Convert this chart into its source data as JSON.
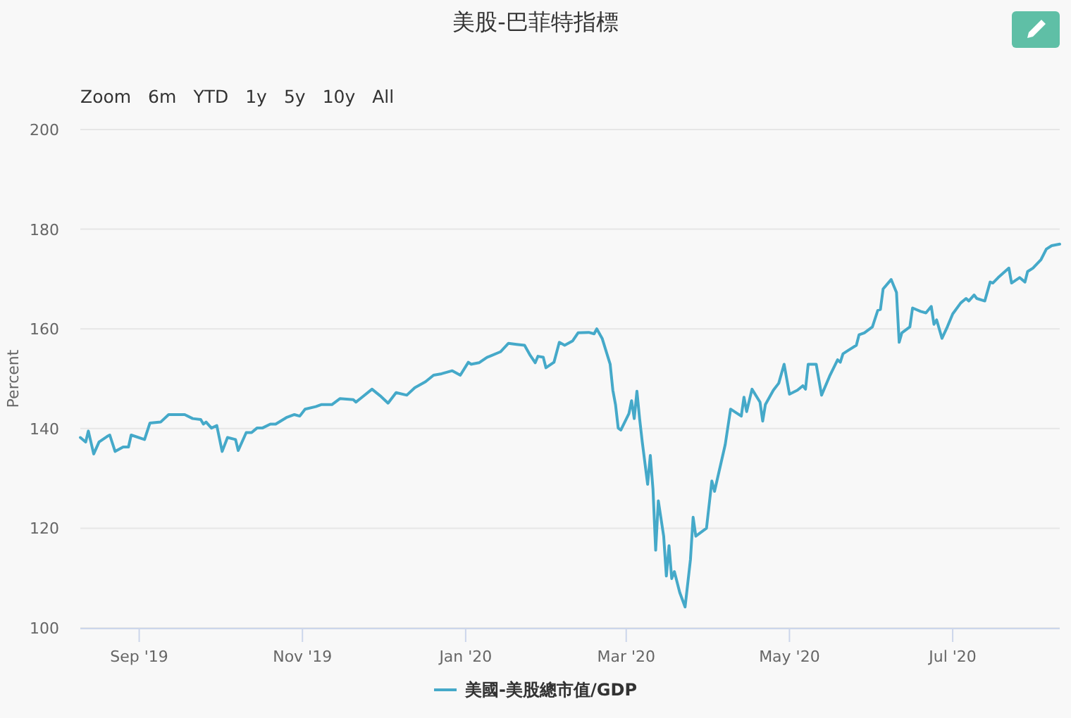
{
  "chart_data": {
    "type": "line",
    "title": "美股-巴菲特指標",
    "ylabel": "Percent",
    "annotations": [
      "Zoom",
      "6m",
      "YTD",
      "1y",
      "5y",
      "10y",
      "All"
    ],
    "x": [
      "2019-08-10",
      "2019-08-12",
      "2019-08-13",
      "2019-08-15",
      "2019-08-17",
      "2019-08-20",
      "2019-08-21",
      "2019-08-23",
      "2019-08-26",
      "2019-08-28",
      "2019-08-29",
      "2019-09-03",
      "2019-09-05",
      "2019-09-09",
      "2019-09-12",
      "2019-09-18",
      "2019-09-21",
      "2019-09-24",
      "2019-09-25",
      "2019-09-26",
      "2019-09-28",
      "2019-09-30",
      "2019-10-02",
      "2019-10-04",
      "2019-10-07",
      "2019-10-08",
      "2019-10-11",
      "2019-10-13",
      "2019-10-15",
      "2019-10-17",
      "2019-10-20",
      "2019-10-22",
      "2019-10-26",
      "2019-10-29",
      "2019-10-31",
      "2019-11-02",
      "2019-11-06",
      "2019-11-08",
      "2019-11-12",
      "2019-11-15",
      "2019-11-20",
      "2019-11-21",
      "2019-11-27",
      "2019-11-30",
      "2019-12-03",
      "2019-12-06",
      "2019-12-10",
      "2019-12-13",
      "2019-12-17",
      "2019-12-20",
      "2019-12-23",
      "2019-12-27",
      "2019-12-30",
      "2020-01-02",
      "2020-01-03",
      "2020-01-06",
      "2020-01-09",
      "2020-01-10",
      "2020-01-14",
      "2020-01-17",
      "2020-01-20",
      "2020-01-23",
      "2020-01-25",
      "2020-01-27",
      "2020-01-28",
      "2020-01-30",
      "2020-01-31",
      "2020-02-03",
      "2020-02-05",
      "2020-02-07",
      "2020-02-10",
      "2020-02-12",
      "2020-02-16",
      "2020-02-18",
      "2020-02-19",
      "2020-02-21",
      "2020-02-24",
      "2020-02-25",
      "2020-02-26",
      "2020-02-27",
      "2020-02-28",
      "2020-03-02",
      "2020-03-03",
      "2020-03-04",
      "2020-03-05",
      "2020-03-06",
      "2020-03-07",
      "2020-03-09",
      "2020-03-10",
      "2020-03-11",
      "2020-03-12",
      "2020-03-13",
      "2020-03-15",
      "2020-03-16",
      "2020-03-17",
      "2020-03-18",
      "2020-03-19",
      "2020-03-21",
      "2020-03-23",
      "2020-03-25",
      "2020-03-26",
      "2020-03-27",
      "2020-03-31",
      "2020-04-02",
      "2020-04-03",
      "2020-04-07",
      "2020-04-09",
      "2020-04-13",
      "2020-04-14",
      "2020-04-15",
      "2020-04-17",
      "2020-04-20",
      "2020-04-21",
      "2020-04-22",
      "2020-04-25",
      "2020-04-27",
      "2020-04-29",
      "2020-05-01",
      "2020-05-04",
      "2020-05-06",
      "2020-05-07",
      "2020-05-08",
      "2020-05-11",
      "2020-05-13",
      "2020-05-16",
      "2020-05-19",
      "2020-05-20",
      "2020-05-21",
      "2020-05-23",
      "2020-05-26",
      "2020-05-27",
      "2020-05-29",
      "2020-06-01",
      "2020-06-03",
      "2020-06-04",
      "2020-06-05",
      "2020-06-08",
      "2020-06-10",
      "2020-06-11",
      "2020-06-12",
      "2020-06-15",
      "2020-06-16",
      "2020-06-19",
      "2020-06-21",
      "2020-06-23",
      "2020-06-24",
      "2020-06-25",
      "2020-06-27",
      "2020-06-29",
      "2020-07-01",
      "2020-07-04",
      "2020-07-06",
      "2020-07-07",
      "2020-07-09",
      "2020-07-10",
      "2020-07-13",
      "2020-07-15",
      "2020-07-16",
      "2020-07-18",
      "2020-07-22",
      "2020-07-23",
      "2020-07-26",
      "2020-07-28",
      "2020-07-29",
      "2020-07-31",
      "2020-08-03",
      "2020-08-05",
      "2020-08-07",
      "2020-08-10"
    ],
    "series": [
      {
        "name": "美國-美股總市值/GDP",
        "color": "#45a9c9",
        "values": [
          138.2,
          137.3,
          139.5,
          134.9,
          137.3,
          138.4,
          138.7,
          135.4,
          136.3,
          136.3,
          138.7,
          137.8,
          141.1,
          141.3,
          142.8,
          142.8,
          142.0,
          141.8,
          140.9,
          141.3,
          140.1,
          140.6,
          135.4,
          138.2,
          137.8,
          135.6,
          139.2,
          139.2,
          140.1,
          140.1,
          140.9,
          140.9,
          142.2,
          142.8,
          142.5,
          143.9,
          144.4,
          144.8,
          144.8,
          146.0,
          145.8,
          145.3,
          147.9,
          146.6,
          145.1,
          147.2,
          146.7,
          148.2,
          149.4,
          150.7,
          151.0,
          151.6,
          150.7,
          153.3,
          152.9,
          153.2,
          154.3,
          154.5,
          155.4,
          157.1,
          156.9,
          156.7,
          154.8,
          153.2,
          154.5,
          154.3,
          152.2,
          153.3,
          157.3,
          156.7,
          157.6,
          159.2,
          159.3,
          159.0,
          160.0,
          158.1,
          152.9,
          147.7,
          144.8,
          140.1,
          139.7,
          143.0,
          145.6,
          142.0,
          147.5,
          142.0,
          137.3,
          128.8,
          134.6,
          127.8,
          115.6,
          125.5,
          118.4,
          110.4,
          116.5,
          109.9,
          111.3,
          107.1,
          104.2,
          113.7,
          122.2,
          118.4,
          120.0,
          129.5,
          127.4,
          136.8,
          143.9,
          142.5,
          146.3,
          143.4,
          147.9,
          145.3,
          141.5,
          144.8,
          147.7,
          149.1,
          152.9,
          146.9,
          147.7,
          148.6,
          147.9,
          152.9,
          152.9,
          146.7,
          150.5,
          153.8,
          153.3,
          155.0,
          155.7,
          156.7,
          158.8,
          159.2,
          160.4,
          163.7,
          163.9,
          168.0,
          169.9,
          167.3,
          157.3,
          159.2,
          160.4,
          164.2,
          163.5,
          163.2,
          164.5,
          160.9,
          161.8,
          158.1,
          160.4,
          163.0,
          165.2,
          166.1,
          165.6,
          166.8,
          166.1,
          165.6,
          169.4,
          169.2,
          170.3,
          172.2,
          169.2,
          170.3,
          169.4,
          171.5,
          172.2,
          173.9,
          176.0,
          176.7,
          177.0
        ]
      }
    ],
    "xlim": [
      "2019-08-10",
      "2020-08-10"
    ],
    "xticks": [
      {
        "value": "2019-09-01",
        "label": "Sep '19"
      },
      {
        "value": "2019-11-01",
        "label": "Nov '19"
      },
      {
        "value": "2020-01-01",
        "label": "Jan '20"
      },
      {
        "value": "2020-03-01",
        "label": "Mar '20"
      },
      {
        "value": "2020-05-01",
        "label": "May '20"
      },
      {
        "value": "2020-07-01",
        "label": "Jul '20"
      }
    ],
    "ylim": [
      100,
      200
    ],
    "yticks": [
      100,
      120,
      140,
      160,
      180,
      200
    ],
    "grid": "y",
    "legend": "bottom"
  }
}
